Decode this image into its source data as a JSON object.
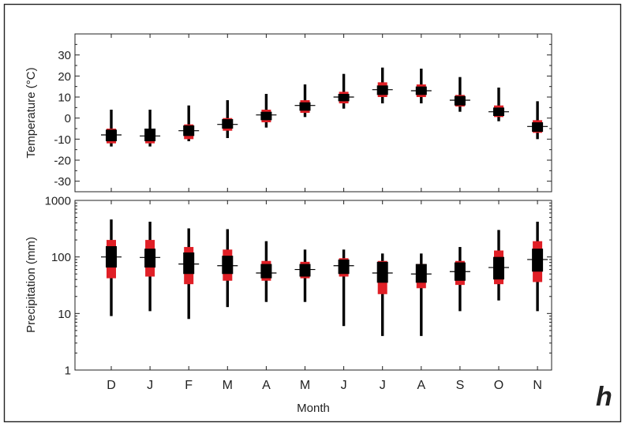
{
  "panel_label": "h",
  "chart_data": [
    {
      "type": "box",
      "ylabel": "Temperature (°C)",
      "xlabel": "",
      "ylim": [
        -35,
        40
      ],
      "y_scale": "linear",
      "yticks": [
        {
          "value": 30,
          "label": "30"
        },
        {
          "value": 20,
          "label": "20"
        },
        {
          "value": 10,
          "label": "10"
        },
        {
          "value": 0,
          "label": "0"
        },
        {
          "value": -10,
          "label": "-10"
        },
        {
          "value": -20,
          "label": "-20"
        },
        {
          "value": -30,
          "label": "-30"
        }
      ],
      "categories": [
        "D",
        "J",
        "F",
        "M",
        "A",
        "M",
        "J",
        "J",
        "A",
        "S",
        "O",
        "N"
      ],
      "series": [
        {
          "whisker_low": [
            -13.5,
            -13.5,
            -11,
            -9.5,
            -4.5,
            0.5,
            4.5,
            7,
            7,
            3,
            -1.5,
            -10
          ],
          "red_low": [
            -12,
            -12,
            -10,
            -6,
            -2,
            2.5,
            7,
            10,
            10,
            5.5,
            0.5,
            -7
          ],
          "box_low": [
            -11,
            -11,
            -8.5,
            -5,
            -1,
            3.5,
            8,
            11,
            11,
            6,
            1,
            -6.5
          ],
          "median": [
            -8,
            -8.5,
            -6,
            -3,
            1.5,
            6,
            10,
            13.5,
            13,
            8.5,
            3,
            -4
          ],
          "box_high": [
            -5.5,
            -5,
            -3.5,
            -0.5,
            3,
            7.5,
            11.5,
            15.5,
            15,
            10.5,
            5,
            -2
          ],
          "red_high": [
            -5,
            -5,
            -3,
            0,
            4,
            8.5,
            12.5,
            17,
            16,
            11,
            6,
            -1
          ],
          "whisker_high": [
            4,
            4,
            6,
            8.5,
            11.5,
            16,
            21,
            24,
            23.5,
            19.5,
            14.5,
            8
          ]
        }
      ],
      "colors": {
        "box": "#000000",
        "quantile_band": "#e01f26",
        "median_line": "#000000"
      }
    },
    {
      "type": "box",
      "ylabel": "Precipitation (mm)",
      "xlabel": "Month",
      "ylim": [
        1,
        1000
      ],
      "y_scale": "log",
      "yticks": [
        {
          "value": 1,
          "label": "1"
        },
        {
          "value": 10,
          "label": "10"
        },
        {
          "value": 100,
          "label": "100"
        },
        {
          "value": 1000,
          "label": "1000"
        }
      ],
      "categories": [
        "D",
        "J",
        "F",
        "M",
        "A",
        "M",
        "J",
        "J",
        "A",
        "S",
        "O",
        "N"
      ],
      "series": [
        {
          "whisker_low": [
            9,
            11,
            8,
            13,
            16,
            16,
            6,
            4,
            4,
            11,
            17,
            11
          ],
          "red_low": [
            42,
            45,
            33,
            38,
            38,
            42,
            45,
            22,
            28,
            32,
            33,
            36
          ],
          "box_low": [
            65,
            65,
            50,
            50,
            42,
            45,
            50,
            35,
            35,
            38,
            40,
            55
          ],
          "median": [
            100,
            98,
            75,
            70,
            52,
            60,
            70,
            52,
            50,
            55,
            65,
            90
          ],
          "box_high": [
            155,
            140,
            120,
            105,
            75,
            75,
            90,
            82,
            75,
            80,
            100,
            140
          ],
          "red_high": [
            200,
            200,
            150,
            135,
            85,
            82,
            95,
            85,
            75,
            85,
            130,
            190
          ],
          "whisker_high": [
            460,
            420,
            320,
            310,
            190,
            135,
            135,
            115,
            115,
            150,
            300,
            420
          ]
        }
      ],
      "colors": {
        "box": "#000000",
        "quantile_band": "#e01f26",
        "median_line": "#000000"
      }
    }
  ]
}
